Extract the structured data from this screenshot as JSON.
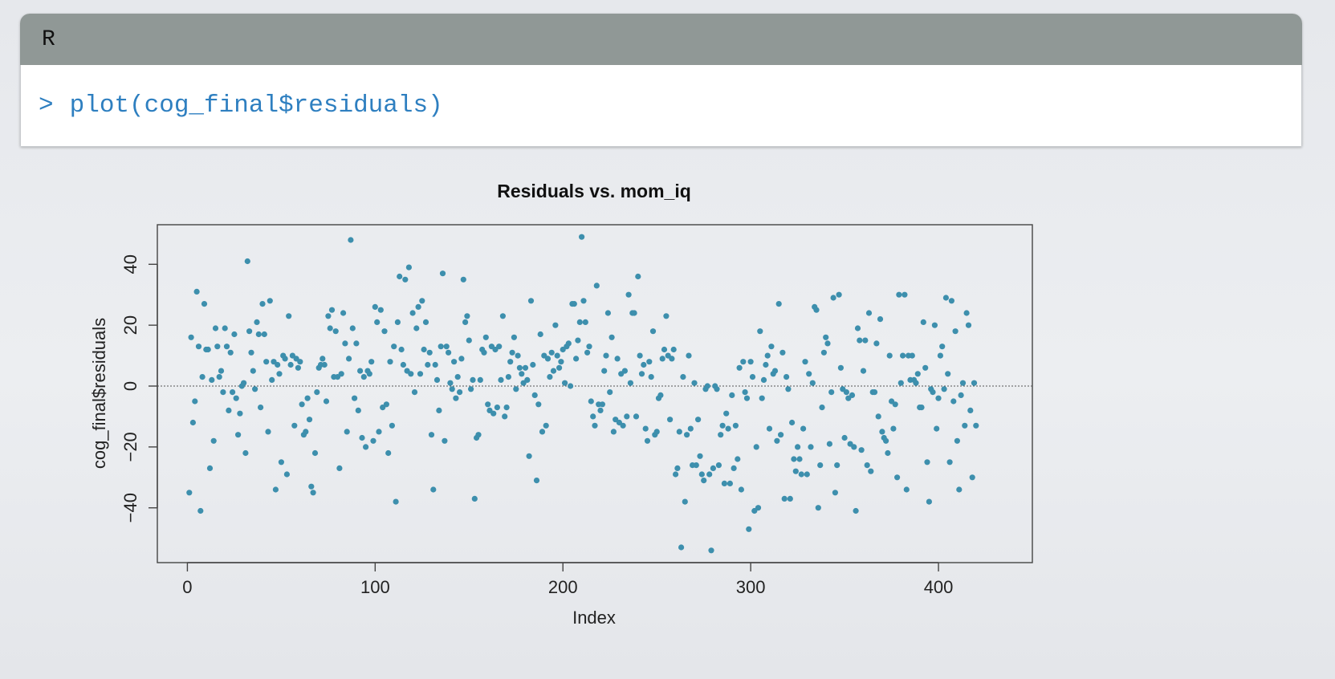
{
  "code": {
    "language": "R",
    "prompt": ">",
    "command": "plot(cog_final$residuals)"
  },
  "colors": {
    "point": "#3d8fad",
    "header": "#909896",
    "code_text": "#2e7fc0"
  },
  "chart_data": {
    "type": "scatter",
    "title": "Residuals vs. mom_iq",
    "xlabel": "Index",
    "ylabel": "cog_final$residuals",
    "xlim": [
      -16,
      450
    ],
    "ylim": [
      -58,
      53
    ],
    "xticks": [
      0,
      100,
      200,
      300,
      400
    ],
    "yticks": [
      -40,
      -20,
      0,
      20,
      40
    ],
    "reference_line": 0,
    "grid": false,
    "points": [
      [
        1,
        -35
      ],
      [
        2,
        16
      ],
      [
        3,
        -12
      ],
      [
        4,
        -5
      ],
      [
        5,
        31
      ],
      [
        6,
        13
      ],
      [
        7,
        -41
      ],
      [
        8,
        3
      ],
      [
        9,
        27
      ],
      [
        10,
        12
      ],
      [
        11,
        12
      ],
      [
        12,
        -27
      ],
      [
        13,
        2
      ],
      [
        14,
        -18
      ],
      [
        15,
        19
      ],
      [
        16,
        13
      ],
      [
        17,
        3
      ],
      [
        18,
        5
      ],
      [
        19,
        -2
      ],
      [
        20,
        19
      ],
      [
        21,
        13
      ],
      [
        22,
        -8
      ],
      [
        23,
        11
      ],
      [
        24,
        -2
      ],
      [
        25,
        17
      ],
      [
        26,
        -4
      ],
      [
        27,
        -16
      ],
      [
        28,
        -9
      ],
      [
        29,
        0
      ],
      [
        30,
        1
      ],
      [
        31,
        -22
      ],
      [
        32,
        41
      ],
      [
        33,
        18
      ],
      [
        34,
        11
      ],
      [
        35,
        5
      ],
      [
        36,
        -1
      ],
      [
        37,
        21
      ],
      [
        38,
        17
      ],
      [
        39,
        -7
      ],
      [
        40,
        27
      ],
      [
        41,
        17
      ],
      [
        42,
        8
      ],
      [
        43,
        -15
      ],
      [
        44,
        28
      ],
      [
        45,
        2
      ],
      [
        46,
        8
      ],
      [
        47,
        -34
      ],
      [
        48,
        7
      ],
      [
        49,
        4
      ],
      [
        50,
        -25
      ],
      [
        51,
        10
      ],
      [
        52,
        9
      ],
      [
        53,
        -29
      ],
      [
        54,
        23
      ],
      [
        55,
        7
      ],
      [
        56,
        10
      ],
      [
        57,
        -13
      ],
      [
        58,
        9
      ],
      [
        59,
        6
      ],
      [
        60,
        8
      ],
      [
        61,
        -6
      ],
      [
        62,
        -16
      ],
      [
        63,
        -15
      ],
      [
        64,
        -4
      ],
      [
        65,
        -11
      ],
      [
        66,
        -33
      ],
      [
        67,
        -35
      ],
      [
        68,
        -22
      ],
      [
        69,
        -2
      ],
      [
        70,
        6
      ],
      [
        71,
        7
      ],
      [
        72,
        9
      ],
      [
        73,
        7
      ],
      [
        74,
        -5
      ],
      [
        75,
        23
      ],
      [
        76,
        19
      ],
      [
        77,
        25
      ],
      [
        78,
        3
      ],
      [
        79,
        18
      ],
      [
        80,
        3
      ],
      [
        81,
        -27
      ],
      [
        82,
        4
      ],
      [
        83,
        24
      ],
      [
        84,
        14
      ],
      [
        85,
        -15
      ],
      [
        86,
        9
      ],
      [
        87,
        48
      ],
      [
        88,
        19
      ],
      [
        89,
        -4
      ],
      [
        90,
        14
      ],
      [
        91,
        -8
      ],
      [
        92,
        5
      ],
      [
        93,
        -17
      ],
      [
        94,
        3
      ],
      [
        95,
        -20
      ],
      [
        96,
        5
      ],
      [
        97,
        4
      ],
      [
        98,
        8
      ],
      [
        99,
        -18
      ],
      [
        100,
        26
      ],
      [
        101,
        21
      ],
      [
        102,
        -15
      ],
      [
        103,
        25
      ],
      [
        104,
        -7
      ],
      [
        105,
        18
      ],
      [
        106,
        -6
      ],
      [
        107,
        -22
      ],
      [
        108,
        8
      ],
      [
        109,
        -13
      ],
      [
        110,
        13
      ],
      [
        111,
        -38
      ],
      [
        112,
        21
      ],
      [
        113,
        36
      ],
      [
        114,
        12
      ],
      [
        115,
        7
      ],
      [
        116,
        35
      ],
      [
        117,
        5
      ],
      [
        118,
        39
      ],
      [
        119,
        4
      ],
      [
        120,
        24
      ],
      [
        121,
        -2
      ],
      [
        122,
        19
      ],
      [
        123,
        26
      ],
      [
        124,
        4
      ],
      [
        125,
        28
      ],
      [
        126,
        12
      ],
      [
        127,
        21
      ],
      [
        128,
        7
      ],
      [
        129,
        11
      ],
      [
        130,
        -16
      ],
      [
        131,
        -34
      ],
      [
        132,
        7
      ],
      [
        133,
        2
      ],
      [
        134,
        -8
      ],
      [
        135,
        13
      ],
      [
        136,
        37
      ],
      [
        137,
        -18
      ],
      [
        138,
        13
      ],
      [
        139,
        11
      ],
      [
        140,
        1
      ],
      [
        141,
        -1
      ],
      [
        142,
        8
      ],
      [
        143,
        -4
      ],
      [
        144,
        3
      ],
      [
        145,
        -2
      ],
      [
        146,
        9
      ],
      [
        147,
        35
      ],
      [
        148,
        21
      ],
      [
        149,
        23
      ],
      [
        150,
        15
      ],
      [
        151,
        -1
      ],
      [
        152,
        2
      ],
      [
        153,
        -37
      ],
      [
        154,
        -17
      ],
      [
        155,
        -16
      ],
      [
        156,
        2
      ],
      [
        157,
        12
      ],
      [
        158,
        11
      ],
      [
        159,
        16
      ],
      [
        160,
        -6
      ],
      [
        161,
        -8
      ],
      [
        162,
        13
      ],
      [
        163,
        -9
      ],
      [
        164,
        12
      ],
      [
        165,
        -7
      ],
      [
        166,
        13
      ],
      [
        167,
        2
      ],
      [
        168,
        23
      ],
      [
        169,
        -10
      ],
      [
        170,
        -7
      ],
      [
        171,
        3
      ],
      [
        172,
        8
      ],
      [
        173,
        11
      ],
      [
        174,
        16
      ],
      [
        175,
        -1
      ],
      [
        176,
        10
      ],
      [
        177,
        6
      ],
      [
        178,
        4
      ],
      [
        179,
        1
      ],
      [
        180,
        6
      ],
      [
        181,
        2
      ],
      [
        182,
        -23
      ],
      [
        183,
        28
      ],
      [
        184,
        7
      ],
      [
        185,
        -3
      ],
      [
        186,
        -31
      ],
      [
        187,
        -6
      ],
      [
        188,
        17
      ],
      [
        189,
        -15
      ],
      [
        190,
        10
      ],
      [
        191,
        -13
      ],
      [
        192,
        9
      ],
      [
        193,
        3
      ],
      [
        194,
        11
      ],
      [
        195,
        5
      ],
      [
        196,
        20
      ],
      [
        197,
        10
      ],
      [
        198,
        6
      ],
      [
        199,
        8
      ],
      [
        200,
        12
      ],
      [
        201,
        1
      ],
      [
        202,
        13
      ],
      [
        203,
        14
      ],
      [
        204,
        0
      ],
      [
        205,
        27
      ],
      [
        206,
        27
      ],
      [
        207,
        9
      ],
      [
        208,
        15
      ],
      [
        209,
        21
      ],
      [
        210,
        49
      ],
      [
        211,
        28
      ],
      [
        212,
        21
      ],
      [
        213,
        11
      ],
      [
        214,
        13
      ],
      [
        215,
        -5
      ],
      [
        216,
        -10
      ],
      [
        217,
        -13
      ],
      [
        218,
        33
      ],
      [
        219,
        -6
      ],
      [
        220,
        -8
      ],
      [
        221,
        -6
      ],
      [
        222,
        5
      ],
      [
        223,
        10
      ],
      [
        224,
        24
      ],
      [
        225,
        -2
      ],
      [
        226,
        16
      ],
      [
        227,
        -15
      ],
      [
        228,
        -11
      ],
      [
        229,
        9
      ],
      [
        230,
        -12
      ],
      [
        231,
        4
      ],
      [
        232,
        -13
      ],
      [
        233,
        5
      ],
      [
        234,
        -10
      ],
      [
        235,
        30
      ],
      [
        236,
        1
      ],
      [
        237,
        24
      ],
      [
        238,
        24
      ],
      [
        239,
        -10
      ],
      [
        240,
        36
      ],
      [
        241,
        10
      ],
      [
        242,
        4
      ],
      [
        243,
        7
      ],
      [
        244,
        -14
      ],
      [
        245,
        -18
      ],
      [
        246,
        8
      ],
      [
        247,
        3
      ],
      [
        248,
        18
      ],
      [
        249,
        -16
      ],
      [
        250,
        -15
      ],
      [
        251,
        -4
      ],
      [
        252,
        -3
      ],
      [
        253,
        9
      ],
      [
        254,
        12
      ],
      [
        255,
        23
      ],
      [
        256,
        10
      ],
      [
        257,
        -11
      ],
      [
        258,
        9
      ],
      [
        259,
        12
      ],
      [
        260,
        -29
      ],
      [
        261,
        -27
      ],
      [
        262,
        -15
      ],
      [
        263,
        -53
      ],
      [
        264,
        3
      ],
      [
        265,
        -38
      ],
      [
        266,
        -16
      ],
      [
        267,
        10
      ],
      [
        268,
        -14
      ],
      [
        269,
        -26
      ],
      [
        270,
        1
      ],
      [
        271,
        -26
      ],
      [
        272,
        -11
      ],
      [
        273,
        -23
      ],
      [
        274,
        -29
      ],
      [
        275,
        -31
      ],
      [
        276,
        -1
      ],
      [
        277,
        0
      ],
      [
        278,
        -29
      ],
      [
        279,
        -54
      ],
      [
        280,
        -27
      ],
      [
        281,
        0
      ],
      [
        282,
        -1
      ],
      [
        283,
        -26
      ],
      [
        284,
        -16
      ],
      [
        285,
        -13
      ],
      [
        286,
        -32
      ],
      [
        287,
        -9
      ],
      [
        288,
        -14
      ],
      [
        289,
        -32
      ],
      [
        290,
        -3
      ],
      [
        291,
        -27
      ],
      [
        292,
        -13
      ],
      [
        293,
        -24
      ],
      [
        294,
        6
      ],
      [
        295,
        -34
      ],
      [
        296,
        8
      ],
      [
        297,
        -2
      ],
      [
        298,
        -4
      ],
      [
        299,
        -47
      ],
      [
        300,
        8
      ],
      [
        301,
        3
      ],
      [
        302,
        -41
      ],
      [
        303,
        -20
      ],
      [
        304,
        -40
      ],
      [
        305,
        18
      ],
      [
        306,
        -4
      ],
      [
        307,
        2
      ],
      [
        308,
        7
      ],
      [
        309,
        10
      ],
      [
        310,
        -14
      ],
      [
        311,
        13
      ],
      [
        312,
        4
      ],
      [
        313,
        5
      ],
      [
        314,
        -18
      ],
      [
        315,
        27
      ],
      [
        316,
        -16
      ],
      [
        317,
        11
      ],
      [
        318,
        -37
      ],
      [
        319,
        3
      ],
      [
        320,
        -1
      ],
      [
        321,
        -37
      ],
      [
        322,
        -12
      ],
      [
        323,
        -24
      ],
      [
        324,
        -28
      ],
      [
        325,
        -20
      ],
      [
        326,
        -24
      ],
      [
        327,
        -29
      ],
      [
        328,
        -14
      ],
      [
        329,
        8
      ],
      [
        330,
        -29
      ],
      [
        331,
        4
      ],
      [
        332,
        -20
      ],
      [
        333,
        1
      ],
      [
        334,
        26
      ],
      [
        335,
        25
      ],
      [
        336,
        -40
      ],
      [
        337,
        -26
      ],
      [
        338,
        -7
      ],
      [
        339,
        11
      ],
      [
        340,
        16
      ],
      [
        341,
        14
      ],
      [
        342,
        -19
      ],
      [
        343,
        -2
      ],
      [
        344,
        29
      ],
      [
        345,
        -35
      ],
      [
        346,
        -26
      ],
      [
        347,
        30
      ],
      [
        348,
        6
      ],
      [
        349,
        -1
      ],
      [
        350,
        -17
      ],
      [
        351,
        -2
      ],
      [
        352,
        -4
      ],
      [
        353,
        -19
      ],
      [
        354,
        -3
      ],
      [
        355,
        -20
      ],
      [
        356,
        -41
      ],
      [
        357,
        19
      ],
      [
        358,
        15
      ],
      [
        359,
        -21
      ],
      [
        360,
        5
      ],
      [
        361,
        15
      ],
      [
        362,
        -26
      ],
      [
        363,
        24
      ],
      [
        364,
        -28
      ],
      [
        365,
        -2
      ],
      [
        366,
        -2
      ],
      [
        367,
        14
      ],
      [
        368,
        -10
      ],
      [
        369,
        22
      ],
      [
        370,
        -15
      ],
      [
        371,
        -17
      ],
      [
        372,
        -18
      ],
      [
        373,
        -22
      ],
      [
        374,
        10
      ],
      [
        375,
        -5
      ],
      [
        376,
        -14
      ],
      [
        377,
        -6
      ],
      [
        378,
        -30
      ],
      [
        379,
        30
      ],
      [
        380,
        1
      ],
      [
        381,
        10
      ],
      [
        382,
        30
      ],
      [
        383,
        -34
      ],
      [
        384,
        10
      ],
      [
        385,
        2
      ],
      [
        386,
        10
      ],
      [
        387,
        2
      ],
      [
        388,
        1
      ],
      [
        389,
        4
      ],
      [
        390,
        -7
      ],
      [
        391,
        -7
      ],
      [
        392,
        21
      ],
      [
        393,
        6
      ],
      [
        394,
        -25
      ],
      [
        395,
        -38
      ],
      [
        396,
        -1
      ],
      [
        397,
        -2
      ],
      [
        398,
        20
      ],
      [
        399,
        -14
      ],
      [
        400,
        -4
      ],
      [
        401,
        10
      ],
      [
        402,
        13
      ],
      [
        403,
        -1
      ],
      [
        404,
        29
      ],
      [
        405,
        4
      ],
      [
        406,
        -25
      ],
      [
        407,
        28
      ],
      [
        408,
        -5
      ],
      [
        409,
        18
      ],
      [
        410,
        -18
      ],
      [
        411,
        -34
      ],
      [
        412,
        -3
      ],
      [
        413,
        1
      ],
      [
        414,
        -13
      ],
      [
        415,
        24
      ],
      [
        416,
        20
      ],
      [
        417,
        -8
      ],
      [
        418,
        -30
      ],
      [
        419,
        1
      ],
      [
        420,
        -13
      ]
    ]
  }
}
